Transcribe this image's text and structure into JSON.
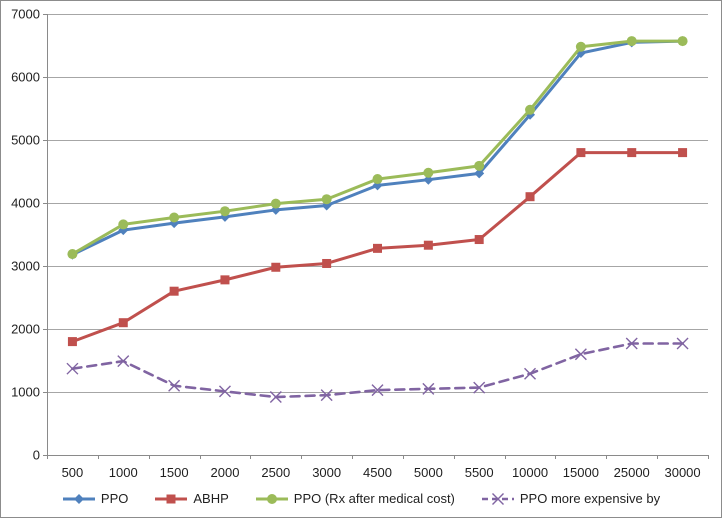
{
  "chart_data": {
    "type": "line",
    "title": "",
    "xlabel": "",
    "ylabel": "",
    "ylim": [
      0,
      7000
    ],
    "ytick_step": 1000,
    "grid": true,
    "legend_position": "bottom",
    "categories": [
      "500",
      "1000",
      "1500",
      "2000",
      "2500",
      "3000",
      "4500",
      "5000",
      "5500",
      "10000",
      "15000",
      "25000",
      "30000"
    ],
    "series": [
      {
        "name": "PPO",
        "color": "#4F81BD",
        "marker": "diamond",
        "line_style": "solid",
        "values": [
          3180,
          3570,
          3680,
          3780,
          3890,
          3960,
          4280,
          4370,
          4470,
          5400,
          6380,
          6550,
          6570
        ]
      },
      {
        "name": "ABHP",
        "color": "#C0504D",
        "marker": "square",
        "line_style": "solid",
        "values": [
          1800,
          2100,
          2600,
          2780,
          2980,
          3040,
          3280,
          3330,
          3420,
          4100,
          4800,
          4800,
          4800
        ]
      },
      {
        "name": "PPO (Rx after medical cost)",
        "color": "#9BBB59",
        "marker": "circle",
        "line_style": "solid",
        "values": [
          3190,
          3660,
          3770,
          3870,
          3990,
          4060,
          4380,
          4480,
          4590,
          5480,
          6480,
          6570,
          6570
        ]
      },
      {
        "name": "PPO more expensive by",
        "color": "#8064A2",
        "marker": "x",
        "line_style": "dashed",
        "values": [
          1370,
          1490,
          1100,
          1010,
          920,
          950,
          1030,
          1050,
          1070,
          1290,
          1600,
          1770,
          1770
        ]
      }
    ]
  },
  "axis": {
    "y_tick_labels": [
      "0",
      "1000",
      "2000",
      "3000",
      "4000",
      "5000",
      "6000",
      "7000"
    ],
    "gridline_color": "#A6A6A6",
    "axis_line_color": "#8A8A8A",
    "label_color": "#1F1F1F"
  }
}
